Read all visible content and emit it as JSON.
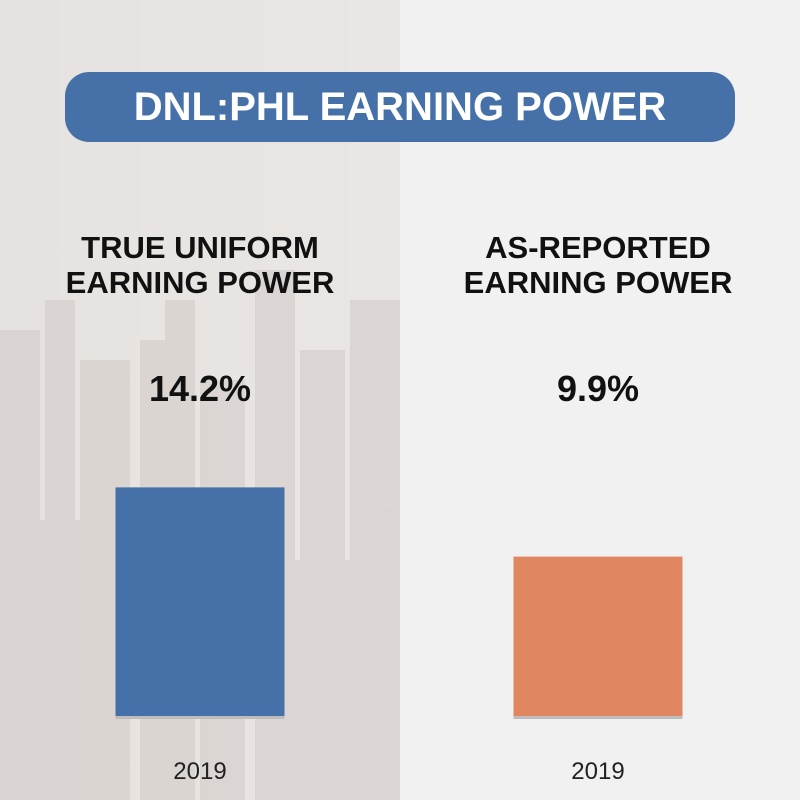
{
  "title": "DNL:PHL EARNING POWER",
  "chart_data": [
    {
      "type": "bar",
      "title": "TRUE UNIFORM EARNING POWER",
      "categories": [
        "2019"
      ],
      "values": [
        14.2
      ],
      "value_labels": [
        "14.2%"
      ],
      "color": "#4571a8"
    },
    {
      "type": "bar",
      "title": "AS-REPORTED EARNING POWER",
      "categories": [
        "2019"
      ],
      "values": [
        9.9
      ],
      "value_labels": [
        "9.9%"
      ],
      "color": "#e08660"
    }
  ]
}
